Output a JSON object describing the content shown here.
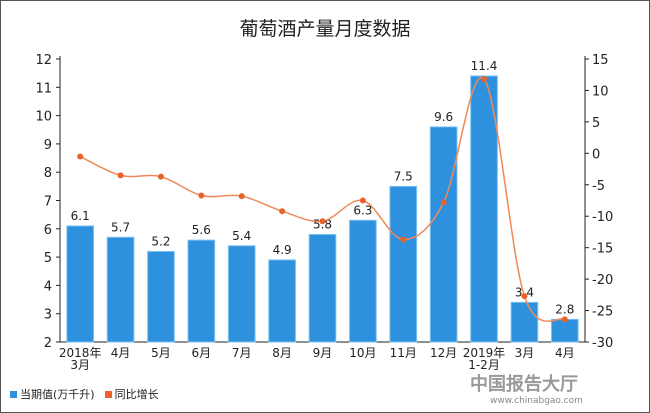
{
  "chart_data": {
    "type": "bar+line",
    "title": "葡萄酒产量月度数据",
    "categories": [
      "2018年\n3月",
      "4月",
      "5月",
      "6月",
      "7月",
      "8月",
      "9月",
      "10月",
      "11月",
      "12月",
      "2019年\n1-2月",
      "3月",
      "4月"
    ],
    "series": [
      {
        "name": "当期值(万千升)",
        "type": "bar",
        "axis": "left",
        "color": "#2e91dd",
        "values": [
          6.1,
          5.7,
          5.2,
          5.6,
          5.4,
          4.9,
          5.8,
          6.3,
          7.5,
          9.6,
          11.4,
          3.4,
          2.8
        ]
      },
      {
        "name": "同比增长",
        "type": "line",
        "axis": "right",
        "color": "#e8622a",
        "values": [
          -0.5,
          -3.5,
          -3.7,
          -6.7,
          -6.8,
          -9.2,
          -10.8,
          -7.5,
          -13.7,
          -7.8,
          11.8,
          -22.7,
          -26.4
        ]
      }
    ],
    "ylim": [
      2,
      12
    ],
    "yticks": [
      2,
      3,
      4,
      5,
      6,
      7,
      8,
      9,
      10,
      11,
      12
    ],
    "y2lim": [
      -30,
      15
    ],
    "y2ticks": [
      -30,
      -25,
      -20,
      -15,
      -10,
      -5,
      0,
      5,
      10,
      15
    ],
    "grid": false,
    "legend": "bottom-left"
  },
  "watermark": {
    "name": "中国报告大厅",
    "url": "www.chinabgao.com"
  }
}
